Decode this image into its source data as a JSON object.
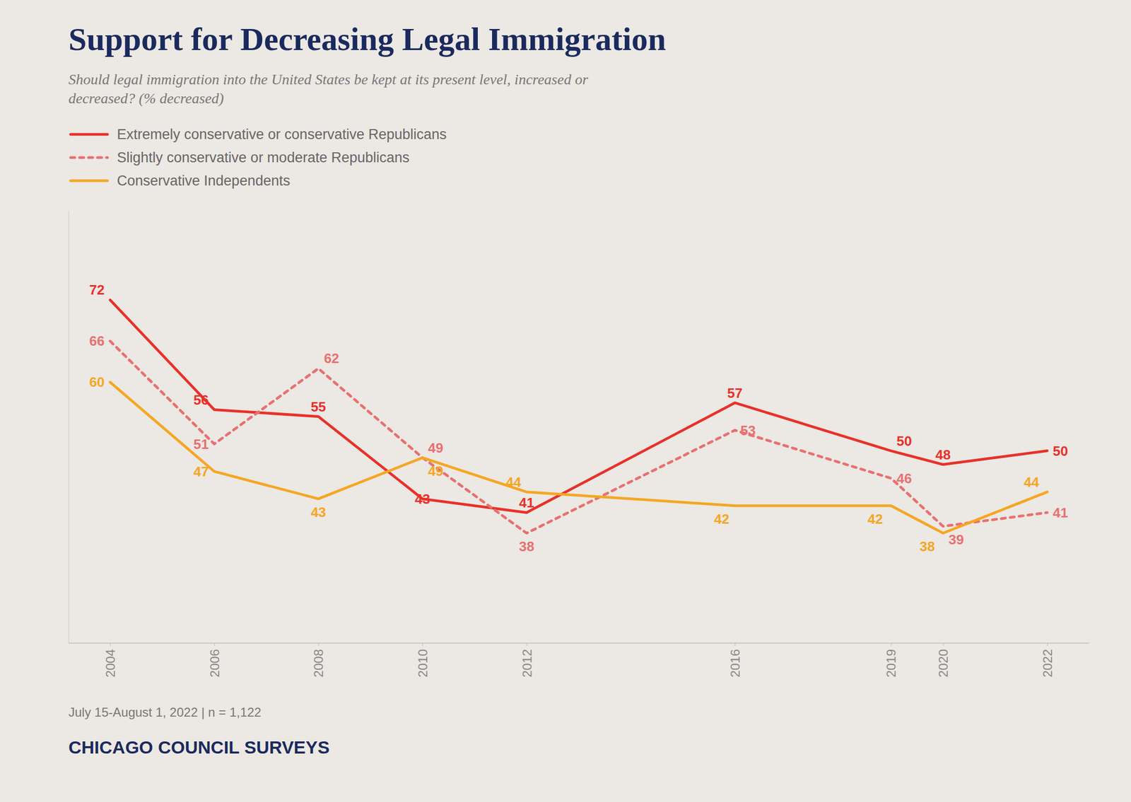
{
  "chart_data": {
    "type": "line",
    "title": "Support for Decreasing Legal Immigration",
    "subtitle": "Should legal immigration into the United States be kept at its present level, increased or\ndecreased? (% decreased)",
    "x": [
      2004,
      2006,
      2008,
      2010,
      2012,
      2016,
      2019,
      2020,
      2022
    ],
    "series": [
      {
        "name": "Extremely conservative or conservative Republicans",
        "values": [
          72,
          56,
          55,
          43,
          41,
          57,
          50,
          48,
          50
        ],
        "color": "#e8312a",
        "line_style": "solid"
      },
      {
        "name": "Slightly conservative or moderate Republicans",
        "values": [
          66,
          51,
          62,
          49,
          38,
          53,
          46,
          39,
          41
        ],
        "color": "#e87070",
        "line_style": "dashed"
      },
      {
        "name": "Conservative Independents",
        "values": [
          60,
          47,
          43,
          49,
          44,
          42,
          42,
          38,
          44
        ],
        "color": "#f5a623",
        "line_style": "solid"
      }
    ],
    "xlim": [
      2003.2,
      2022.8
    ],
    "xticks": [
      2004,
      2006,
      2008,
      2010,
      2012,
      2016,
      2019,
      2020,
      2022
    ],
    "ylim": [
      22,
      85
    ],
    "tick_labels": "x",
    "grid": false,
    "legend": "top-left",
    "data_labels": true,
    "annotations": [
      "July 15-August 1, 2022 | n = 1,122",
      "CHICAGO COUNCIL SURVEYS"
    ]
  }
}
